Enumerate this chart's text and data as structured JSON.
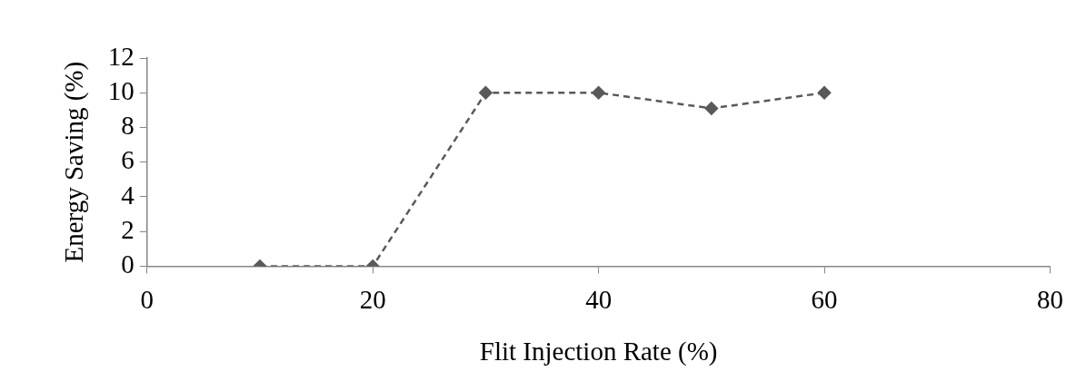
{
  "chart_data": {
    "type": "line",
    "xlabel": "Flit Injection Rate (%)",
    "ylabel": "Energy Saving (%)",
    "x": [
      10,
      20,
      30,
      40,
      50,
      60
    ],
    "series": [
      {
        "color": "#595959",
        "values": [
          0,
          0,
          10,
          10,
          9.1,
          10
        ]
      }
    ],
    "xlim": [
      0,
      80
    ],
    "xticks": [
      0,
      20,
      40,
      60,
      80
    ],
    "ylim": [
      0,
      12
    ],
    "yticks": [
      0,
      2,
      4,
      6,
      8,
      10,
      12
    ],
    "grid": false,
    "legend": false,
    "marker": "diamond",
    "line_style": "dashed"
  }
}
